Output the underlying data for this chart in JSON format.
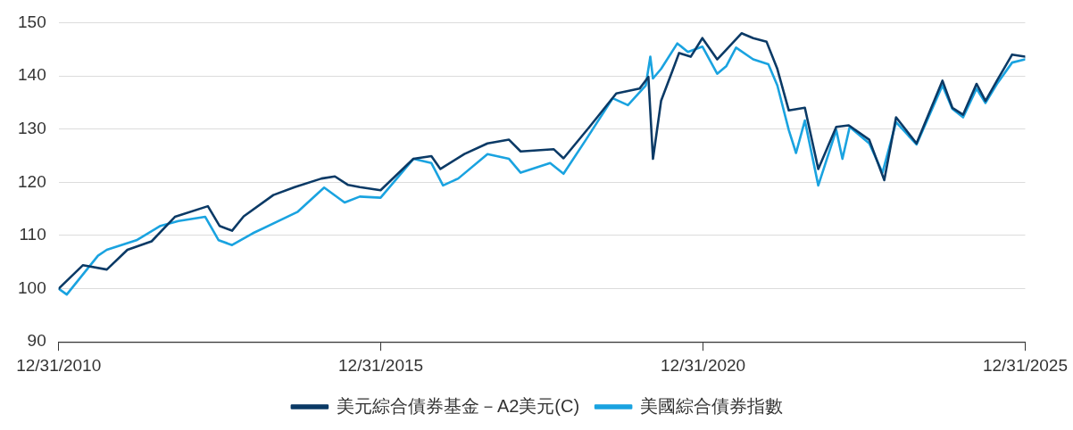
{
  "chart_data": {
    "type": "line",
    "xlim": [
      "2010-12-31",
      "2025-12-31"
    ],
    "xticks": [
      {
        "value": "2010-12-31",
        "label": "12/31/2010"
      },
      {
        "value": "2015-12-31",
        "label": "12/31/2015"
      },
      {
        "value": "2020-12-31",
        "label": "12/31/2020"
      },
      {
        "value": "2025-12-31",
        "label": "12/31/2025"
      }
    ],
    "ylim": [
      90,
      150
    ],
    "yticks": [
      90,
      100,
      110,
      120,
      130,
      140,
      150
    ],
    "grid": "y",
    "legend": "bottom",
    "marker": "none",
    "line_style": "solid",
    "series": [
      {
        "name": "美元綜合債券基金－A2美元(C)",
        "color": "#0b3a66",
        "x": [
          "2010-12-31",
          "2011-05-17",
          "2011-09-30",
          "2012-01-25",
          "2012-06-10",
          "2012-10-20",
          "2013-04-25",
          "2013-06-30",
          "2013-09-09",
          "2013-11-14",
          "2014-05-01",
          "2014-08-30",
          "2015-01-29",
          "2015-04-15",
          "2015-06-29",
          "2015-09-03",
          "2015-12-30",
          "2016-07-03",
          "2016-10-13",
          "2016-12-03",
          "2017-04-18",
          "2017-08-27",
          "2017-12-27",
          "2018-03-03",
          "2018-09-07",
          "2018-11-01",
          "2019-03-28",
          "2019-08-27",
          "2020-01-06",
          "2020-02-25",
          "2020-03-22",
          "2020-05-07",
          "2020-07-12",
          "2020-08-17",
          "2020-10-22",
          "2020-12-27",
          "2021-03-21",
          "2021-05-11",
          "2021-08-06",
          "2021-10-11",
          "2021-12-26",
          "2022-02-25",
          "2022-05-01",
          "2022-07-31",
          "2022-10-15",
          "2023-01-25",
          "2023-04-06",
          "2023-07-31",
          "2023-10-24",
          "2023-12-30",
          "2024-04-24",
          "2024-09-18",
          "2024-11-13",
          "2025-01-13",
          "2025-03-30",
          "2025-05-20",
          "2025-07-24",
          "2025-10-18",
          "2025-12-31"
        ],
        "values": [
          100,
          104.4,
          103.6,
          107.3,
          108.9,
          113.5,
          115.5,
          111.8,
          110.9,
          113.6,
          117.6,
          119.1,
          120.7,
          121.1,
          119.5,
          119.1,
          118.5,
          124.4,
          124.9,
          122.5,
          125.3,
          127.3,
          128,
          125.8,
          126.2,
          124.5,
          130.4,
          136.7,
          137.6,
          139.8,
          124.4,
          135.3,
          141.1,
          144.3,
          143.6,
          147.1,
          143.1,
          144.9,
          148,
          147.1,
          146.4,
          141.3,
          133.5,
          134,
          122.5,
          130.4,
          130.7,
          128,
          120.4,
          132.2,
          127.3,
          139.1,
          134,
          132.7,
          138.5,
          135.3,
          139.1,
          144,
          143.6
        ]
      },
      {
        "name": "美國綜合債券指數",
        "color": "#1aa3e0",
        "x": [
          "2010-12-31",
          "2011-02-15",
          "2011-08-11",
          "2011-09-30",
          "2012-03-16",
          "2012-07-30",
          "2012-11-09",
          "2013-04-10",
          "2013-06-25",
          "2013-09-09",
          "2014-01-04",
          "2014-09-14",
          "2015-02-13",
          "2015-06-09",
          "2015-09-03",
          "2015-12-30",
          "2016-07-03",
          "2016-10-13",
          "2016-12-18",
          "2017-03-14",
          "2017-08-27",
          "2017-12-27",
          "2018-03-03",
          "2018-08-17",
          "2018-11-01",
          "2019-03-08",
          "2019-08-07",
          "2019-11-01",
          "2020-02-10",
          "2020-03-07",
          "2020-03-22",
          "2020-05-07",
          "2020-08-07",
          "2020-10-06",
          "2020-12-27",
          "2021-03-21",
          "2021-05-11",
          "2021-07-06",
          "2021-10-11",
          "2022-01-05",
          "2022-02-25",
          "2022-05-01",
          "2022-06-11",
          "2022-07-31",
          "2022-10-15",
          "2023-01-25",
          "2023-03-01",
          "2023-04-11",
          "2023-07-31",
          "2023-10-14",
          "2023-12-30",
          "2024-04-24",
          "2024-09-18",
          "2024-11-13",
          "2025-01-13",
          "2025-03-30",
          "2025-05-20",
          "2025-07-24",
          "2025-10-18",
          "2025-12-31"
        ],
        "values": [
          100,
          98.9,
          106.2,
          107.3,
          109.1,
          111.8,
          112.7,
          113.5,
          109.1,
          108.2,
          110.4,
          114.4,
          119,
          116.2,
          117.3,
          117.1,
          124.4,
          123.6,
          119.4,
          120.7,
          125.3,
          124.4,
          121.8,
          123.6,
          121.6,
          128,
          135.8,
          134.5,
          138.2,
          143.6,
          139.5,
          141.3,
          146.1,
          144.5,
          145.5,
          140.4,
          141.8,
          145.3,
          143.1,
          142.2,
          138.2,
          129.8,
          125.5,
          131.6,
          119.4,
          129.8,
          124.4,
          130.4,
          127.3,
          121.8,
          131.3,
          127.1,
          138.2,
          133.8,
          132.2,
          137.6,
          134.9,
          138.5,
          142.5,
          143.1
        ]
      }
    ]
  }
}
